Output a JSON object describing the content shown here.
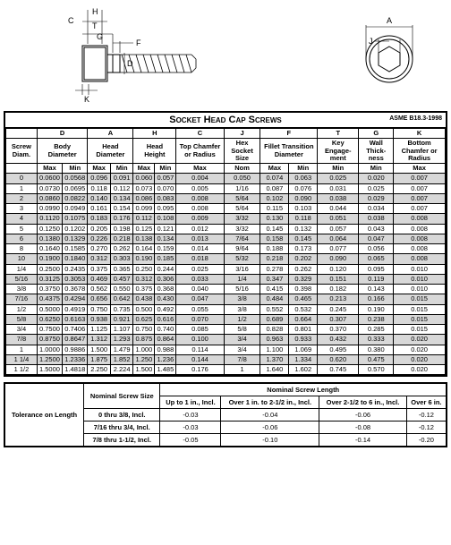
{
  "title": "Socket Head Cap Screws",
  "standard": "ASME B18.3-1998",
  "diagram_labels": {
    "H": "H",
    "C": "C",
    "T": "T",
    "G": "G",
    "F": "F",
    "D": "D",
    "K": "K",
    "A": "A",
    "J": "J"
  },
  "col_letters": [
    "",
    "D",
    "A",
    "H",
    "C",
    "J",
    "F",
    "T",
    "G",
    "K"
  ],
  "col_names": [
    "Screw Diam.",
    "Body Diameter",
    "Head Diameter",
    "Head Height",
    "Top Chamfer or Radius",
    "Hex Socket Size",
    "Fillet Transition Diameter",
    "Key Engage-ment",
    "Wall Thick-ness",
    "Bottom Chamfer or Radius"
  ],
  "col_spans": [
    1,
    2,
    2,
    2,
    1,
    1,
    2,
    1,
    1,
    1
  ],
  "mm_row": [
    "",
    "Max",
    "Min",
    "Max",
    "Min",
    "Max",
    "Min",
    "Max",
    "Nom",
    "Max",
    "Min",
    "Min",
    "Min",
    "Max"
  ],
  "rows": [
    [
      "0",
      "0.0600",
      "0.0568",
      "0.096",
      "0.091",
      "0.060",
      "0.057",
      "0.004",
      "0.050",
      "0.074",
      "0.063",
      "0.025",
      "0.020",
      "0.007"
    ],
    [
      "1",
      "0.0730",
      "0.0695",
      "0.118",
      "0.112",
      "0.073",
      "0.070",
      "0.005",
      "1/16",
      "0.087",
      "0.076",
      "0.031",
      "0.025",
      "0.007"
    ],
    [
      "2",
      "0.0860",
      "0.0822",
      "0.140",
      "0.134",
      "0.086",
      "0.083",
      "0.008",
      "5/64",
      "0.102",
      "0.090",
      "0.038",
      "0.029",
      "0.007"
    ],
    [
      "3",
      "0.0990",
      "0.0949",
      "0.161",
      "0.154",
      "0.099",
      "0.095",
      "0.008",
      "5/64",
      "0.115",
      "0.103",
      "0.044",
      "0.034",
      "0.007"
    ],
    [
      "4",
      "0.1120",
      "0.1075",
      "0.183",
      "0.176",
      "0.112",
      "0.108",
      "0.009",
      "3/32",
      "0.130",
      "0.118",
      "0.051",
      "0.038",
      "0.008"
    ],
    [
      "5",
      "0.1250",
      "0.1202",
      "0.205",
      "0.198",
      "0.125",
      "0.121",
      "0.012",
      "3/32",
      "0.145",
      "0.132",
      "0.057",
      "0.043",
      "0.008"
    ],
    [
      "6",
      "0.1380",
      "0.1329",
      "0.226",
      "0.218",
      "0.138",
      "0.134",
      "0.013",
      "7/64",
      "0.158",
      "0.145",
      "0.064",
      "0.047",
      "0.008"
    ],
    [
      "8",
      "0.1640",
      "0.1585",
      "0.270",
      "0.262",
      "0.164",
      "0.159",
      "0.014",
      "9/64",
      "0.188",
      "0.173",
      "0.077",
      "0.056",
      "0.008"
    ],
    [
      "10",
      "0.1900",
      "0.1840",
      "0.312",
      "0.303",
      "0.190",
      "0.185",
      "0.018",
      "5/32",
      "0.218",
      "0.202",
      "0.090",
      "0.065",
      "0.008"
    ],
    [
      "1/4",
      "0.2500",
      "0.2435",
      "0.375",
      "0.365",
      "0.250",
      "0.244",
      "0.025",
      "3/16",
      "0.278",
      "0.262",
      "0.120",
      "0.095",
      "0.010"
    ],
    [
      "5/16",
      "0.3125",
      "0.3053",
      "0.469",
      "0.457",
      "0.312",
      "0.306",
      "0.033",
      "1/4",
      "0.347",
      "0.329",
      "0.151",
      "0.119",
      "0.010"
    ],
    [
      "3/8",
      "0.3750",
      "0.3678",
      "0.562",
      "0.550",
      "0.375",
      "0.368",
      "0.040",
      "5/16",
      "0.415",
      "0.398",
      "0.182",
      "0.143",
      "0.010"
    ],
    [
      "7/16",
      "0.4375",
      "0.4294",
      "0.656",
      "0.642",
      "0.438",
      "0.430",
      "0.047",
      "3/8",
      "0.484",
      "0.465",
      "0.213",
      "0.166",
      "0.015"
    ],
    [
      "1/2",
      "0.5000",
      "0.4919",
      "0.750",
      "0.735",
      "0.500",
      "0.492",
      "0.055",
      "3/8",
      "0.552",
      "0.532",
      "0.245",
      "0.190",
      "0.015"
    ],
    [
      "5/8",
      "0.6250",
      "0.6163",
      "0.938",
      "0.921",
      "0.625",
      "0.616",
      "0.070",
      "1/2",
      "0.689",
      "0.664",
      "0.307",
      "0.238",
      "0.015"
    ],
    [
      "3/4",
      "0.7500",
      "0.7406",
      "1.125",
      "1.107",
      "0.750",
      "0.740",
      "0.085",
      "5/8",
      "0.828",
      "0.801",
      "0.370",
      "0.285",
      "0.015"
    ],
    [
      "7/8",
      "0.8750",
      "0.8647",
      "1.312",
      "1.293",
      "0.875",
      "0.864",
      "0.100",
      "3/4",
      "0.963",
      "0.933",
      "0.432",
      "0.333",
      "0.020"
    ],
    [
      "1",
      "1.0000",
      "0.9886",
      "1.500",
      "1.479",
      "1.000",
      "0.988",
      "0.114",
      "3/4",
      "1.100",
      "1.069",
      "0.495",
      "0.380",
      "0.020"
    ],
    [
      "1 1/4",
      "1.2500",
      "1.2336",
      "1.875",
      "1.852",
      "1.250",
      "1.236",
      "0.144",
      "7/8",
      "1.370",
      "1.334",
      "0.620",
      "0.475",
      "0.020"
    ],
    [
      "1 1/2",
      "1.5000",
      "1.4818",
      "2.250",
      "2.224",
      "1.500",
      "1.485",
      "0.176",
      "1",
      "1.640",
      "1.602",
      "0.745",
      "0.570",
      "0.020"
    ]
  ],
  "tolerance": {
    "left_title": "Tolerance on Length",
    "nominal_title": "Nominal Screw Size",
    "length_title": "Nominal Screw Length",
    "length_cols": [
      "Up to 1 in., Incl.",
      "Over 1 in. to 2-1/2 in., Incl.",
      "Over 2-1/2 to 6 in., Incl.",
      "Over 6 in."
    ],
    "rows": [
      [
        "0 thru 3/8, Incl.",
        "-0.03",
        "-0.04",
        "-0.06",
        "-0.12"
      ],
      [
        "7/16 thru 3/4, Incl.",
        "-0.03",
        "-0.06",
        "-0.08",
        "-0.12"
      ],
      [
        "7/8 thru 1-1/2, Incl.",
        "-0.05",
        "-0.10",
        "-0.14",
        "-0.20"
      ]
    ]
  }
}
